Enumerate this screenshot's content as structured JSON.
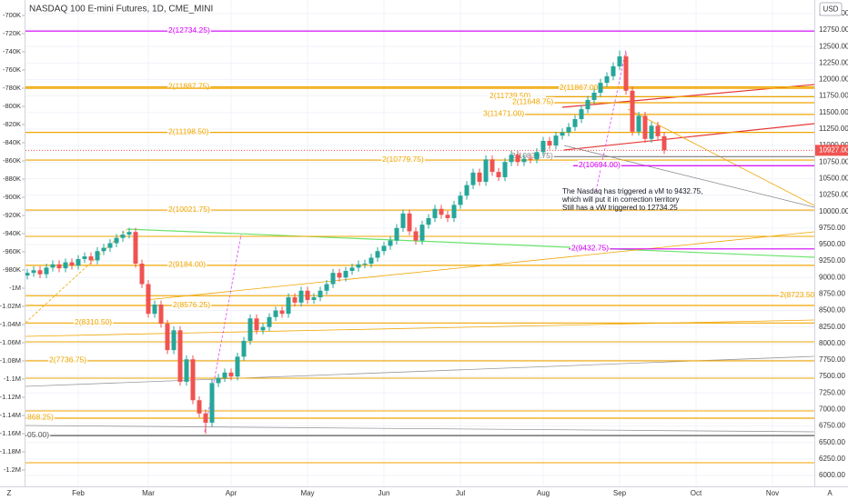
{
  "chart_data": {
    "type": "candlestick",
    "title": "NASDAQ 100 E-mini Futures, 1D, CME_MINI",
    "categories": [
      null,
      null,
      null,
      null,
      null,
      null,
      null,
      null,
      "Feb",
      null,
      null,
      null,
      null,
      null,
      null,
      null,
      null,
      null,
      null,
      "Mar",
      null,
      null,
      null,
      null,
      null,
      null,
      null,
      null,
      null,
      null,
      null,
      null,
      "Apr",
      null,
      null,
      null,
      null,
      null,
      null,
      null,
      null,
      null,
      null,
      null,
      "May",
      null,
      null,
      null,
      null,
      null,
      null,
      null,
      null,
      null,
      null,
      null,
      "Jun",
      null,
      null,
      null,
      null,
      null,
      null,
      null,
      null,
      null,
      null,
      null,
      "Jul",
      null,
      null,
      null,
      null,
      null,
      null,
      null,
      null,
      null,
      null,
      null,
      null,
      "Aug",
      null,
      null,
      null,
      null,
      null,
      null,
      null,
      null,
      null,
      null,
      null,
      "Sep",
      null,
      null,
      null,
      null,
      null,
      null,
      null,
      null,
      null,
      null,
      null,
      "Oct",
      null,
      null,
      null,
      null,
      null,
      null,
      null,
      null,
      null,
      null,
      null,
      "Nov"
    ],
    "open": [
      9030,
      9070,
      9110,
      9050,
      9150,
      9200,
      9140,
      9230,
      9180,
      9280,
      9320,
      9260,
      9400,
      9450,
      9520,
      9600,
      9650,
      9690,
      9210,
      8900,
      8450,
      8590,
      8300,
      7900,
      8200,
      7420,
      7760,
      7140,
      6940,
      6800,
      7400,
      7480,
      7560,
      7500,
      7800,
      8040,
      8380,
      8200,
      8250,
      8400,
      8500,
      8450,
      8700,
      8620,
      8800,
      8660,
      8700,
      8800,
      8900,
      9070,
      9000,
      9100,
      9150,
      9200,
      9210,
      9300,
      9400,
      9480,
      9560,
      9750,
      9970,
      9700,
      9560,
      9800,
      9900,
      10040,
      9950,
      9900,
      10100,
      10240,
      10400,
      10590,
      10450,
      10790,
      10600,
      10520,
      10750,
      10860,
      10750,
      10800,
      10790,
      10900,
      11070,
      11000,
      11150,
      11200,
      11280,
      11400,
      11550,
      11690,
      11800,
      11950,
      12050,
      12200,
      12350,
      11830,
      11210,
      11450,
      11100,
      11300,
      11140,
      null,
      null,
      null,
      null,
      null,
      null,
      null,
      null,
      null,
      null,
      null,
      null,
      null,
      null,
      null,
      null,
      null
    ],
    "high": [
      9130,
      9170,
      9170,
      9210,
      9260,
      9260,
      9290,
      9290,
      9340,
      9380,
      9380,
      9460,
      9510,
      9580,
      9660,
      9710,
      9750,
      9750,
      9270,
      8960,
      8650,
      8650,
      8360,
      8260,
      8260,
      7820,
      7820,
      7200,
      7000,
      7460,
      7540,
      7620,
      7620,
      7860,
      8100,
      8440,
      8440,
      8310,
      8460,
      8560,
      8560,
      8760,
      8760,
      8860,
      8860,
      8760,
      8860,
      8960,
      9130,
      9130,
      9160,
      9210,
      9260,
      9270,
      9360,
      9460,
      9540,
      9620,
      9810,
      10030,
      10030,
      9760,
      9860,
      9960,
      10100,
      10100,
      10010,
      10160,
      10300,
      10460,
      10650,
      10650,
      10850,
      10850,
      10660,
      10810,
      10920,
      10920,
      10860,
      10860,
      10960,
      11130,
      11130,
      11210,
      11260,
      11340,
      11460,
      11610,
      11750,
      11860,
      12010,
      12110,
      12260,
      12440,
      12410,
      11890,
      11510,
      11510,
      11360,
      11360,
      11200,
      null,
      null,
      null,
      null,
      null,
      null,
      null,
      null,
      null,
      null,
      null,
      null,
      null,
      null,
      null,
      null,
      null
    ],
    "low": [
      8970,
      9010,
      8990,
      8990,
      9090,
      9080,
      9080,
      9120,
      9120,
      9220,
      9200,
      9200,
      9340,
      9390,
      9460,
      9540,
      9590,
      9150,
      8840,
      8390,
      8390,
      8240,
      7840,
      7840,
      7360,
      7360,
      7080,
      6880,
      6630,
      6740,
      7340,
      7420,
      7440,
      7440,
      7740,
      7980,
      8140,
      8140,
      8190,
      8340,
      8390,
      8390,
      8560,
      8560,
      8600,
      8600,
      8640,
      8740,
      8840,
      8940,
      8940,
      9040,
      9090,
      9140,
      9150,
      9240,
      9340,
      9420,
      9500,
      9690,
      9640,
      9500,
      9500,
      9740,
      9840,
      9890,
      9840,
      9840,
      10040,
      10180,
      10340,
      10390,
      10390,
      10540,
      10460,
      10460,
      10690,
      10690,
      10690,
      10730,
      10730,
      10840,
      10940,
      10940,
      11090,
      11140,
      11220,
      11340,
      11490,
      11630,
      11740,
      11890,
      11990,
      12140,
      11770,
      11150,
      11150,
      11040,
      11040,
      11080,
      10870,
      null,
      null,
      null,
      null,
      null,
      null,
      null,
      null,
      null,
      null,
      null,
      null,
      null,
      null,
      null,
      null,
      null
    ],
    "close": [
      9070,
      9110,
      9050,
      9150,
      9200,
      9140,
      9230,
      9180,
      9280,
      9320,
      9260,
      9400,
      9450,
      9520,
      9600,
      9650,
      9690,
      9210,
      8900,
      8450,
      8590,
      8300,
      7900,
      8200,
      7420,
      7760,
      7140,
      6940,
      6800,
      7400,
      7480,
      7560,
      7500,
      7800,
      8040,
      8380,
      8200,
      8250,
      8400,
      8500,
      8450,
      8700,
      8620,
      8800,
      8660,
      8700,
      8800,
      8900,
      9070,
      9000,
      9100,
      9150,
      9200,
      9210,
      9300,
      9400,
      9480,
      9560,
      9750,
      9970,
      9700,
      9560,
      9800,
      9900,
      10040,
      9950,
      9900,
      10100,
      10240,
      10400,
      10590,
      10450,
      10790,
      10600,
      10520,
      10750,
      10860,
      10750,
      10800,
      10790,
      10900,
      11070,
      11000,
      11150,
      11200,
      11280,
      11400,
      11550,
      11690,
      11800,
      11950,
      12050,
      12200,
      12350,
      11830,
      11210,
      11450,
      11100,
      11300,
      11140,
      10927,
      null,
      null,
      null,
      null,
      null,
      null,
      null,
      null,
      null,
      null,
      null,
      null,
      null,
      null,
      null,
      null,
      null
    ],
    "up_color": "#26a69a",
    "down_color": "#ef5350",
    "ylim": [
      5835,
      13205
    ],
    "yticks": [
      {
        "value": 6000,
        "label": "6000.00"
      },
      {
        "value": 6250,
        "label": "6250.00"
      },
      {
        "value": 6500,
        "label": "6500.00"
      },
      {
        "value": 6750,
        "label": "6750.00"
      },
      {
        "value": 7000,
        "label": "7000.00"
      },
      {
        "value": 7250,
        "label": "7250.00"
      },
      {
        "value": 7500,
        "label": "7500.00"
      },
      {
        "value": 7750,
        "label": "7750.00"
      },
      {
        "value": 8000,
        "label": "8000.00"
      },
      {
        "value": 8250,
        "label": "8250.00"
      },
      {
        "value": 8500,
        "label": "8500.00"
      },
      {
        "value": 8750,
        "label": "8750.00"
      },
      {
        "value": 9000,
        "label": "9000.00"
      },
      {
        "value": 9250,
        "label": "9250.00"
      },
      {
        "value": 9500,
        "label": "9500.00"
      },
      {
        "value": 9750,
        "label": "9750.00"
      },
      {
        "value": 10000,
        "label": "10000.00"
      },
      {
        "value": 10250,
        "label": "10250.00"
      },
      {
        "value": 10500,
        "label": "10500.00"
      },
      {
        "value": 10750,
        "label": "10750.00"
      },
      {
        "value": 11000,
        "label": "11000.00"
      },
      {
        "value": 11250,
        "label": "11250.00"
      },
      {
        "value": 11500,
        "label": "11500.00"
      },
      {
        "value": 11750,
        "label": "11750.00"
      },
      {
        "value": 12000,
        "label": "12000.00"
      },
      {
        "value": 12250,
        "label": "12250.00"
      },
      {
        "value": 12500,
        "label": "12500.00"
      },
      {
        "value": 12750,
        "label": "12750.00"
      },
      {
        "value": 13000,
        "label": "13000.00"
      }
    ],
    "y2lim": [
      -1218000,
      -683000
    ],
    "y2ticks": [
      {
        "value": -700000,
        "label": "-700K"
      },
      {
        "value": -720000,
        "label": "-720K"
      },
      {
        "value": -740000,
        "label": "-740K"
      },
      {
        "value": -760000,
        "label": "-760K"
      },
      {
        "value": -780000,
        "label": "-780K"
      },
      {
        "value": -800000,
        "label": "-800K"
      },
      {
        "value": -820000,
        "label": "-820K"
      },
      {
        "value": -840000,
        "label": "-840K"
      },
      {
        "value": -860000,
        "label": "-860K"
      },
      {
        "value": -880000,
        "label": "-880K"
      },
      {
        "value": -900000,
        "label": "-900K"
      },
      {
        "value": -920000,
        "label": "-920K"
      },
      {
        "value": -940000,
        "label": "-940K"
      },
      {
        "value": -960000,
        "label": "-960K"
      },
      {
        "value": -980000,
        "label": "-980K"
      },
      {
        "value": -1000000,
        "label": "-1M"
      },
      {
        "value": -1020000,
        "label": "-1.02M"
      },
      {
        "value": -1040000,
        "label": "-1.04M"
      },
      {
        "value": -1060000,
        "label": "-1.06M"
      },
      {
        "value": -1080000,
        "label": "-1.08M"
      },
      {
        "value": -1100000,
        "label": "-1.1M"
      },
      {
        "value": -1120000,
        "label": "-1.12M"
      },
      {
        "value": -1140000,
        "label": "-1.14M"
      },
      {
        "value": -1160000,
        "label": "-1.16M"
      },
      {
        "value": -1180000,
        "label": "-1.18M"
      },
      {
        "value": -1200000,
        "label": "-1.2M"
      }
    ],
    "grid": true,
    "levels": [
      {
        "label": "2(12734.25)",
        "value": 12734.25,
        "color": "#d500f9"
      },
      {
        "label": "2(11887.75)",
        "value": 11887.75,
        "color": "#f0a500"
      },
      {
        "label": "2(11867.00)",
        "value": 11867,
        "color": "#f0a500"
      },
      {
        "label": "2(11739.50)",
        "value": 11739.5,
        "color": "#f0a500"
      },
      {
        "label": "2(11648.75)",
        "value": 11648.75,
        "color": "#f0a500"
      },
      {
        "label": "3(11471.00)",
        "value": 11471,
        "color": "#f0a500"
      },
      {
        "label": "2(11198.50)",
        "value": 11198.5,
        "color": "#f0a500"
      },
      {
        "label": "2(10830.75)",
        "value": 10830.75,
        "color": "#888888"
      },
      {
        "label": "2(10779.75)",
        "value": 10779.75,
        "color": "#f0a500"
      },
      {
        "label": "2(10694.00)",
        "value": 10694,
        "color": "#d500f9"
      },
      {
        "label": "2(10021.75)",
        "value": 10021.75,
        "color": "#f0a500"
      },
      {
        "label": "2(9432.75)",
        "value": 9432.75,
        "color": "#d500f9"
      },
      {
        "label": "2(9184.00)",
        "value": 9184,
        "color": "#f0a500"
      },
      {
        "label": "2(8723.50)",
        "value": 8723.5,
        "color": "#f0a500"
      },
      {
        "label": "2(8576.25)",
        "value": 8576.25,
        "color": "#f0a500"
      },
      {
        "label": "2(8310.50)",
        "value": 8310.5,
        "color": "#f0a500"
      },
      {
        "label": "2(7736.75)",
        "value": 7736.75,
        "color": "#f0a500"
      },
      {
        "label": "868.25)",
        "value": 6868.25,
        "color": "#f0a500"
      },
      {
        "label": "05.00)",
        "value": 6605,
        "color": "#555555"
      }
    ],
    "extra_levels": [
      9623,
      8025,
      7474,
      6978,
      6193
    ],
    "extra_level_color": "#f0a500",
    "current_price": {
      "value": 10927,
      "label": "10927.00"
    },
    "annotation": [
      "The Nasdaq has triggered a vM to 9432.75,",
      "which will put it in correction territory",
      "Still has a vW triggered to 12734.25"
    ]
  },
  "ui": {
    "currency": "USD",
    "scale_left": "Z",
    "scale_right": "A"
  }
}
